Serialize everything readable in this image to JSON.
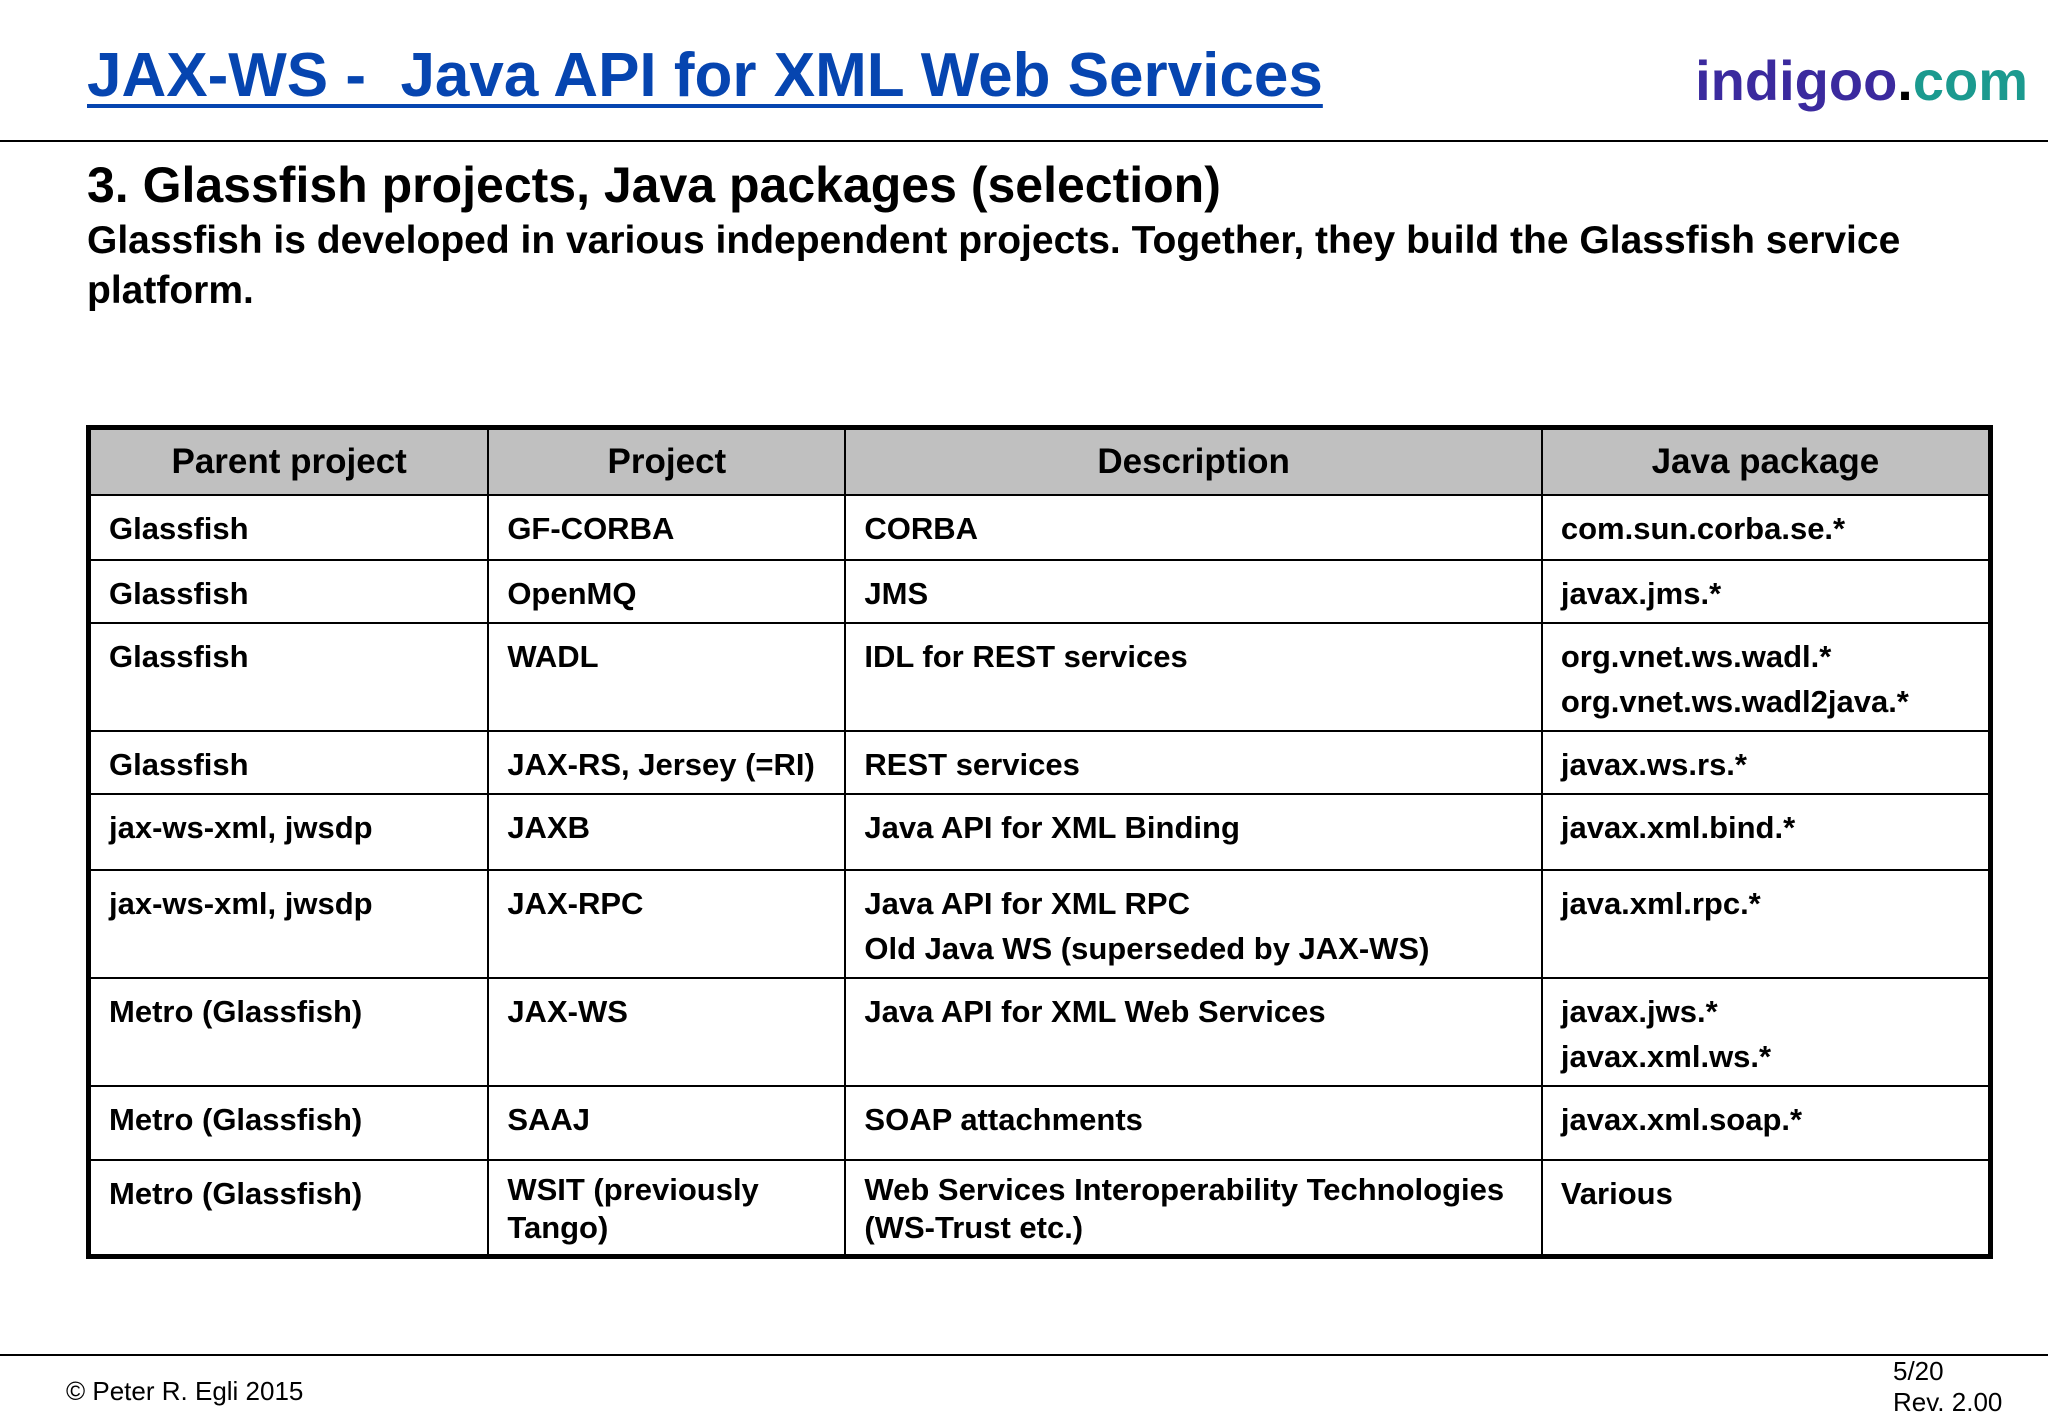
{
  "header": {
    "title": "JAX-WS -  Java API for XML Web Services",
    "logo_part1": "indigoo",
    "logo_part2": ".",
    "logo_part3": "com"
  },
  "section": {
    "title": "3. Glassfish projects, Java packages (selection)",
    "subtitle": "Glassfish is developed in various independent projects. Together, they build the Glassfish service platform."
  },
  "table": {
    "headers": [
      "Parent project",
      "Project",
      "Description",
      "Java package"
    ],
    "rows": [
      {
        "parent": "Glassfish",
        "project": "GF-CORBA",
        "description": [
          "CORBA"
        ],
        "package": [
          "com.sun.corba.se.*"
        ]
      },
      {
        "parent": "Glassfish",
        "project": "OpenMQ",
        "description": [
          "JMS"
        ],
        "package": [
          "javax.jms.*"
        ]
      },
      {
        "parent": "Glassfish",
        "project": "WADL",
        "description": [
          "IDL for REST services"
        ],
        "package": [
          "org.vnet.ws.wadl.*",
          "org.vnet.ws.wadl2java.*"
        ]
      },
      {
        "parent": "Glassfish",
        "project": "JAX-RS, Jersey (=RI)",
        "description": [
          "REST services"
        ],
        "package": [
          "javax.ws.rs.*"
        ]
      },
      {
        "parent": "jax-ws-xml, jwsdp",
        "project": "JAXB",
        "description": [
          "Java API for XML Binding"
        ],
        "package": [
          "javax.xml.bind.*"
        ]
      },
      {
        "parent": "jax-ws-xml, jwsdp",
        "project": "JAX-RPC",
        "description": [
          "Java API for XML RPC",
          "Old Java WS (superseded by JAX-WS)"
        ],
        "package": [
          "java.xml.rpc.*"
        ]
      },
      {
        "parent": "Metro (Glassfish)",
        "project": "JAX-WS",
        "description": [
          "Java API for XML Web Services"
        ],
        "package": [
          "javax.jws.*",
          "javax.xml.ws.*"
        ]
      },
      {
        "parent": "Metro (Glassfish)",
        "project": "SAAJ",
        "description": [
          "SOAP attachments"
        ],
        "package": [
          "javax.xml.soap.*"
        ]
      },
      {
        "parent": "Metro (Glassfish)",
        "project": "WSIT (previously Tango)",
        "description": [
          "Web Services Interoperability Technologies (WS-Trust etc.)"
        ],
        "package": [
          "Various"
        ]
      }
    ]
  },
  "footer": {
    "copyright": "© Peter R. Egli 2015",
    "page": "5/20",
    "revision": "Rev. 2.00"
  }
}
